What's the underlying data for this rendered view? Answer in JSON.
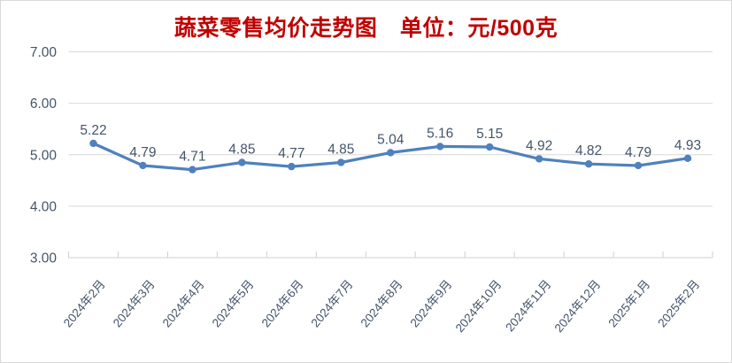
{
  "chart_data": {
    "type": "line",
    "title": "蔬菜零售均价走势图　单位：元/500克",
    "categories": [
      "2024年2月",
      "2024年3月",
      "2024年4月",
      "2024年5月",
      "2024年6月",
      "2024年7月",
      "2024年8月",
      "2024年9月",
      "2024年10月",
      "2024年11月",
      "2024年12月",
      "2025年1月",
      "2025年2月"
    ],
    "values": [
      5.22,
      4.79,
      4.71,
      4.85,
      4.77,
      4.85,
      5.04,
      5.16,
      5.15,
      4.92,
      4.82,
      4.79,
      4.93
    ],
    "data_labels": [
      "5.22",
      "4.79",
      "4.71",
      "4.85",
      "4.77",
      "4.85",
      "5.04",
      "5.16",
      "5.15",
      "4.92",
      "4.82",
      "4.79",
      "4.93"
    ],
    "ylim": [
      3.0,
      7.0
    ],
    "yticks": [
      {
        "value": 7.0,
        "label": "7.00"
      },
      {
        "value": 6.0,
        "label": "6.00"
      },
      {
        "value": 5.0,
        "label": "5.00"
      },
      {
        "value": 4.0,
        "label": "4.00"
      },
      {
        "value": 3.0,
        "label": "3.00"
      }
    ],
    "grid": "horizontal",
    "legend_position": "none",
    "xlabel": "",
    "ylabel": "",
    "colors": {
      "line": "#4F81BD",
      "marker": "#4F81BD",
      "title": "#C00000",
      "label_text": "#44546A",
      "gridline": "#D9D9D9",
      "axis": "#D1D1D1",
      "background": "#FFFFFF",
      "border": "#D9D9D9"
    }
  }
}
